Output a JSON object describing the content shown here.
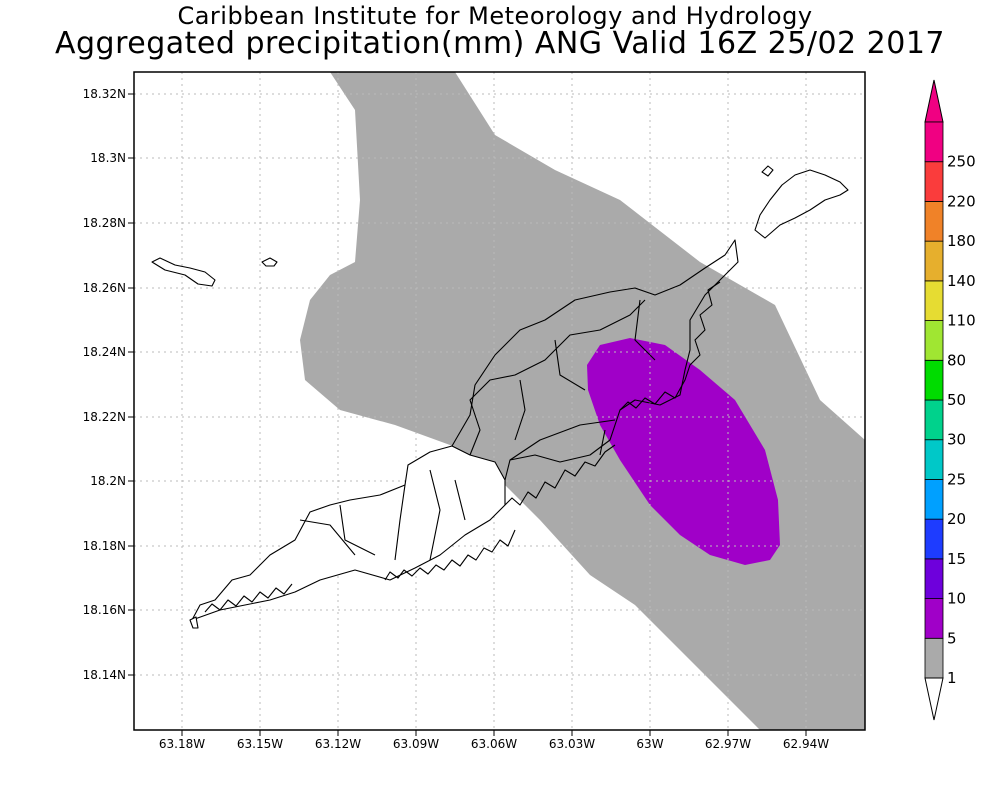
{
  "header": {
    "title_line1": "Caribbean Institute for Meteorology and Hydrology",
    "title_line2": "Aggregated precipitation(mm) ANG Valid 16Z 25/02 2017"
  },
  "map": {
    "lon_ticks": [
      "63.18W",
      "63.15W",
      "63.12W",
      "63.09W",
      "63.06W",
      "63.03W",
      "63W",
      "62.97W",
      "62.94W"
    ],
    "lat_ticks": [
      "18.32N",
      "18.3N",
      "18.28N",
      "18.26N",
      "18.24N",
      "18.22N",
      "18.2N",
      "18.18N",
      "18.16N",
      "18.14N"
    ],
    "grid": true
  },
  "colorbar": {
    "levels": [
      "1",
      "5",
      "10",
      "15",
      "20",
      "25",
      "30",
      "50",
      "80",
      "110",
      "140",
      "180",
      "220",
      "250"
    ],
    "colors": [
      "#aaaaaa",
      "#a000c8",
      "#6e00dc",
      "#1e3cff",
      "#00a0ff",
      "#00c8c8",
      "#00d28c",
      "#00dc00",
      "#a0e632",
      "#e6dc32",
      "#e6af2d",
      "#f08228",
      "#fa3c3c",
      "#f00082"
    ],
    "below_color": "#ffffff",
    "above_color": "#f00082"
  }
}
